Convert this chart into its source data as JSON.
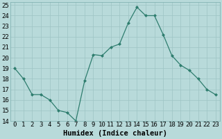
{
  "x": [
    0,
    1,
    2,
    3,
    4,
    5,
    6,
    7,
    8,
    9,
    10,
    11,
    12,
    13,
    14,
    15,
    16,
    17,
    18,
    19,
    20,
    21,
    22,
    23
  ],
  "y": [
    19,
    18,
    16.5,
    16.5,
    16,
    15,
    14.8,
    14,
    17.8,
    20.3,
    20.2,
    21,
    21.3,
    23.3,
    24.8,
    24,
    24.0,
    22.2,
    20.2,
    19.3,
    18.8,
    18,
    17,
    16.5
  ],
  "line_color": "#2e7d6e",
  "marker_color": "#2e7d6e",
  "bg_color": "#b8dada",
  "grid_color": "#9dc4c4",
  "xlabel": "Humidex (Indice chaleur)",
  "ylim": [
    14,
    25.3
  ],
  "xlim": [
    -0.5,
    23.5
  ],
  "yticks": [
    14,
    15,
    16,
    17,
    18,
    19,
    20,
    21,
    22,
    23,
    24,
    25
  ],
  "xticks": [
    0,
    1,
    2,
    3,
    4,
    5,
    6,
    7,
    8,
    9,
    10,
    11,
    12,
    13,
    14,
    15,
    16,
    17,
    18,
    19,
    20,
    21,
    22,
    23
  ],
  "xtick_labels": [
    "0",
    "1",
    "2",
    "3",
    "4",
    "5",
    "6",
    "7",
    "8",
    "9",
    "10",
    "11",
    "12",
    "13",
    "14",
    "15",
    "16",
    "17",
    "18",
    "19",
    "20",
    "21",
    "22",
    "23"
  ],
  "axis_fontsize": 6.5,
  "xlabel_fontsize": 7.5
}
